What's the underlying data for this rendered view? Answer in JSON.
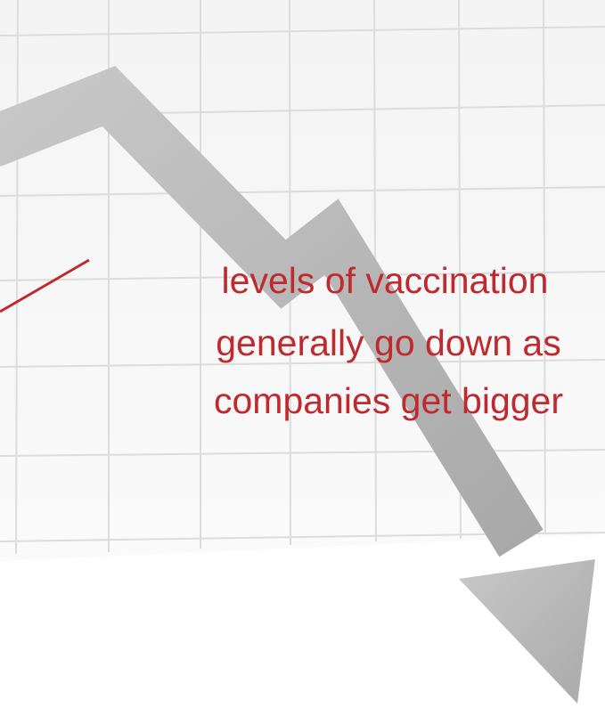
{
  "annotation": {
    "lines": [
      "levels of vaccination",
      "generally go down as",
      "companies get bigger"
    ]
  }
}
